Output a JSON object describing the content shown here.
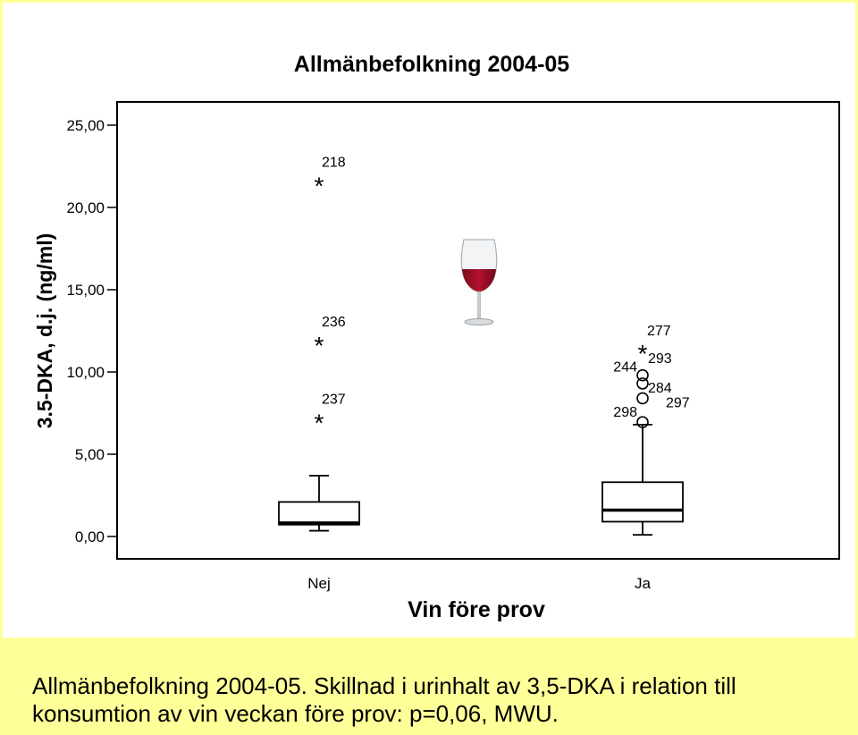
{
  "chart_data": {
    "type": "box",
    "title": "Allmänbefolkning 2004-05",
    "xlabel": "Vin före prov",
    "ylabel": "3.5-DKA, d.j. (ng/ml)",
    "ylim": [
      0,
      25
    ],
    "yticks": [
      "0,00",
      "5,00",
      "10,00",
      "15,00",
      "20,00",
      "25,00"
    ],
    "ytick_values": [
      0,
      5,
      10,
      15,
      20,
      25
    ],
    "categories": [
      "Nej",
      "Ja"
    ],
    "grid": false,
    "boxes": [
      {
        "category": "Nej",
        "whisker_low": 0.35,
        "q1": 0.72,
        "median": 0.82,
        "q3": 2.1,
        "whisker_high": 3.7,
        "outliers": [],
        "extremes": [
          {
            "id": "218",
            "value": 21.5
          },
          {
            "id": "236",
            "value": 11.8
          },
          {
            "id": "237",
            "value": 7.1
          }
        ]
      },
      {
        "category": "Ja",
        "whisker_low": 0.1,
        "q1": 0.9,
        "median": 1.6,
        "q3": 3.3,
        "whisker_high": 6.8,
        "outliers": [
          {
            "id": "244",
            "value": 9.8
          },
          {
            "id": "284",
            "value": 9.3
          },
          {
            "id": "297",
            "value": 8.4
          },
          {
            "id": "298",
            "value": 6.95
          }
        ],
        "extremes": [
          {
            "id": "277",
            "value": 11.3
          },
          {
            "id": "293",
            "value": 11.3
          }
        ]
      }
    ]
  },
  "decoration": {
    "image": "wine-glass-icon",
    "wine_color": "#b3122e"
  },
  "caption": "Allmänbefolkning 2004-05. Skillnad i urinhalt av 3,5-DKA i relation till konsumtion av vin veckan före prov: p=0,06, MWU."
}
